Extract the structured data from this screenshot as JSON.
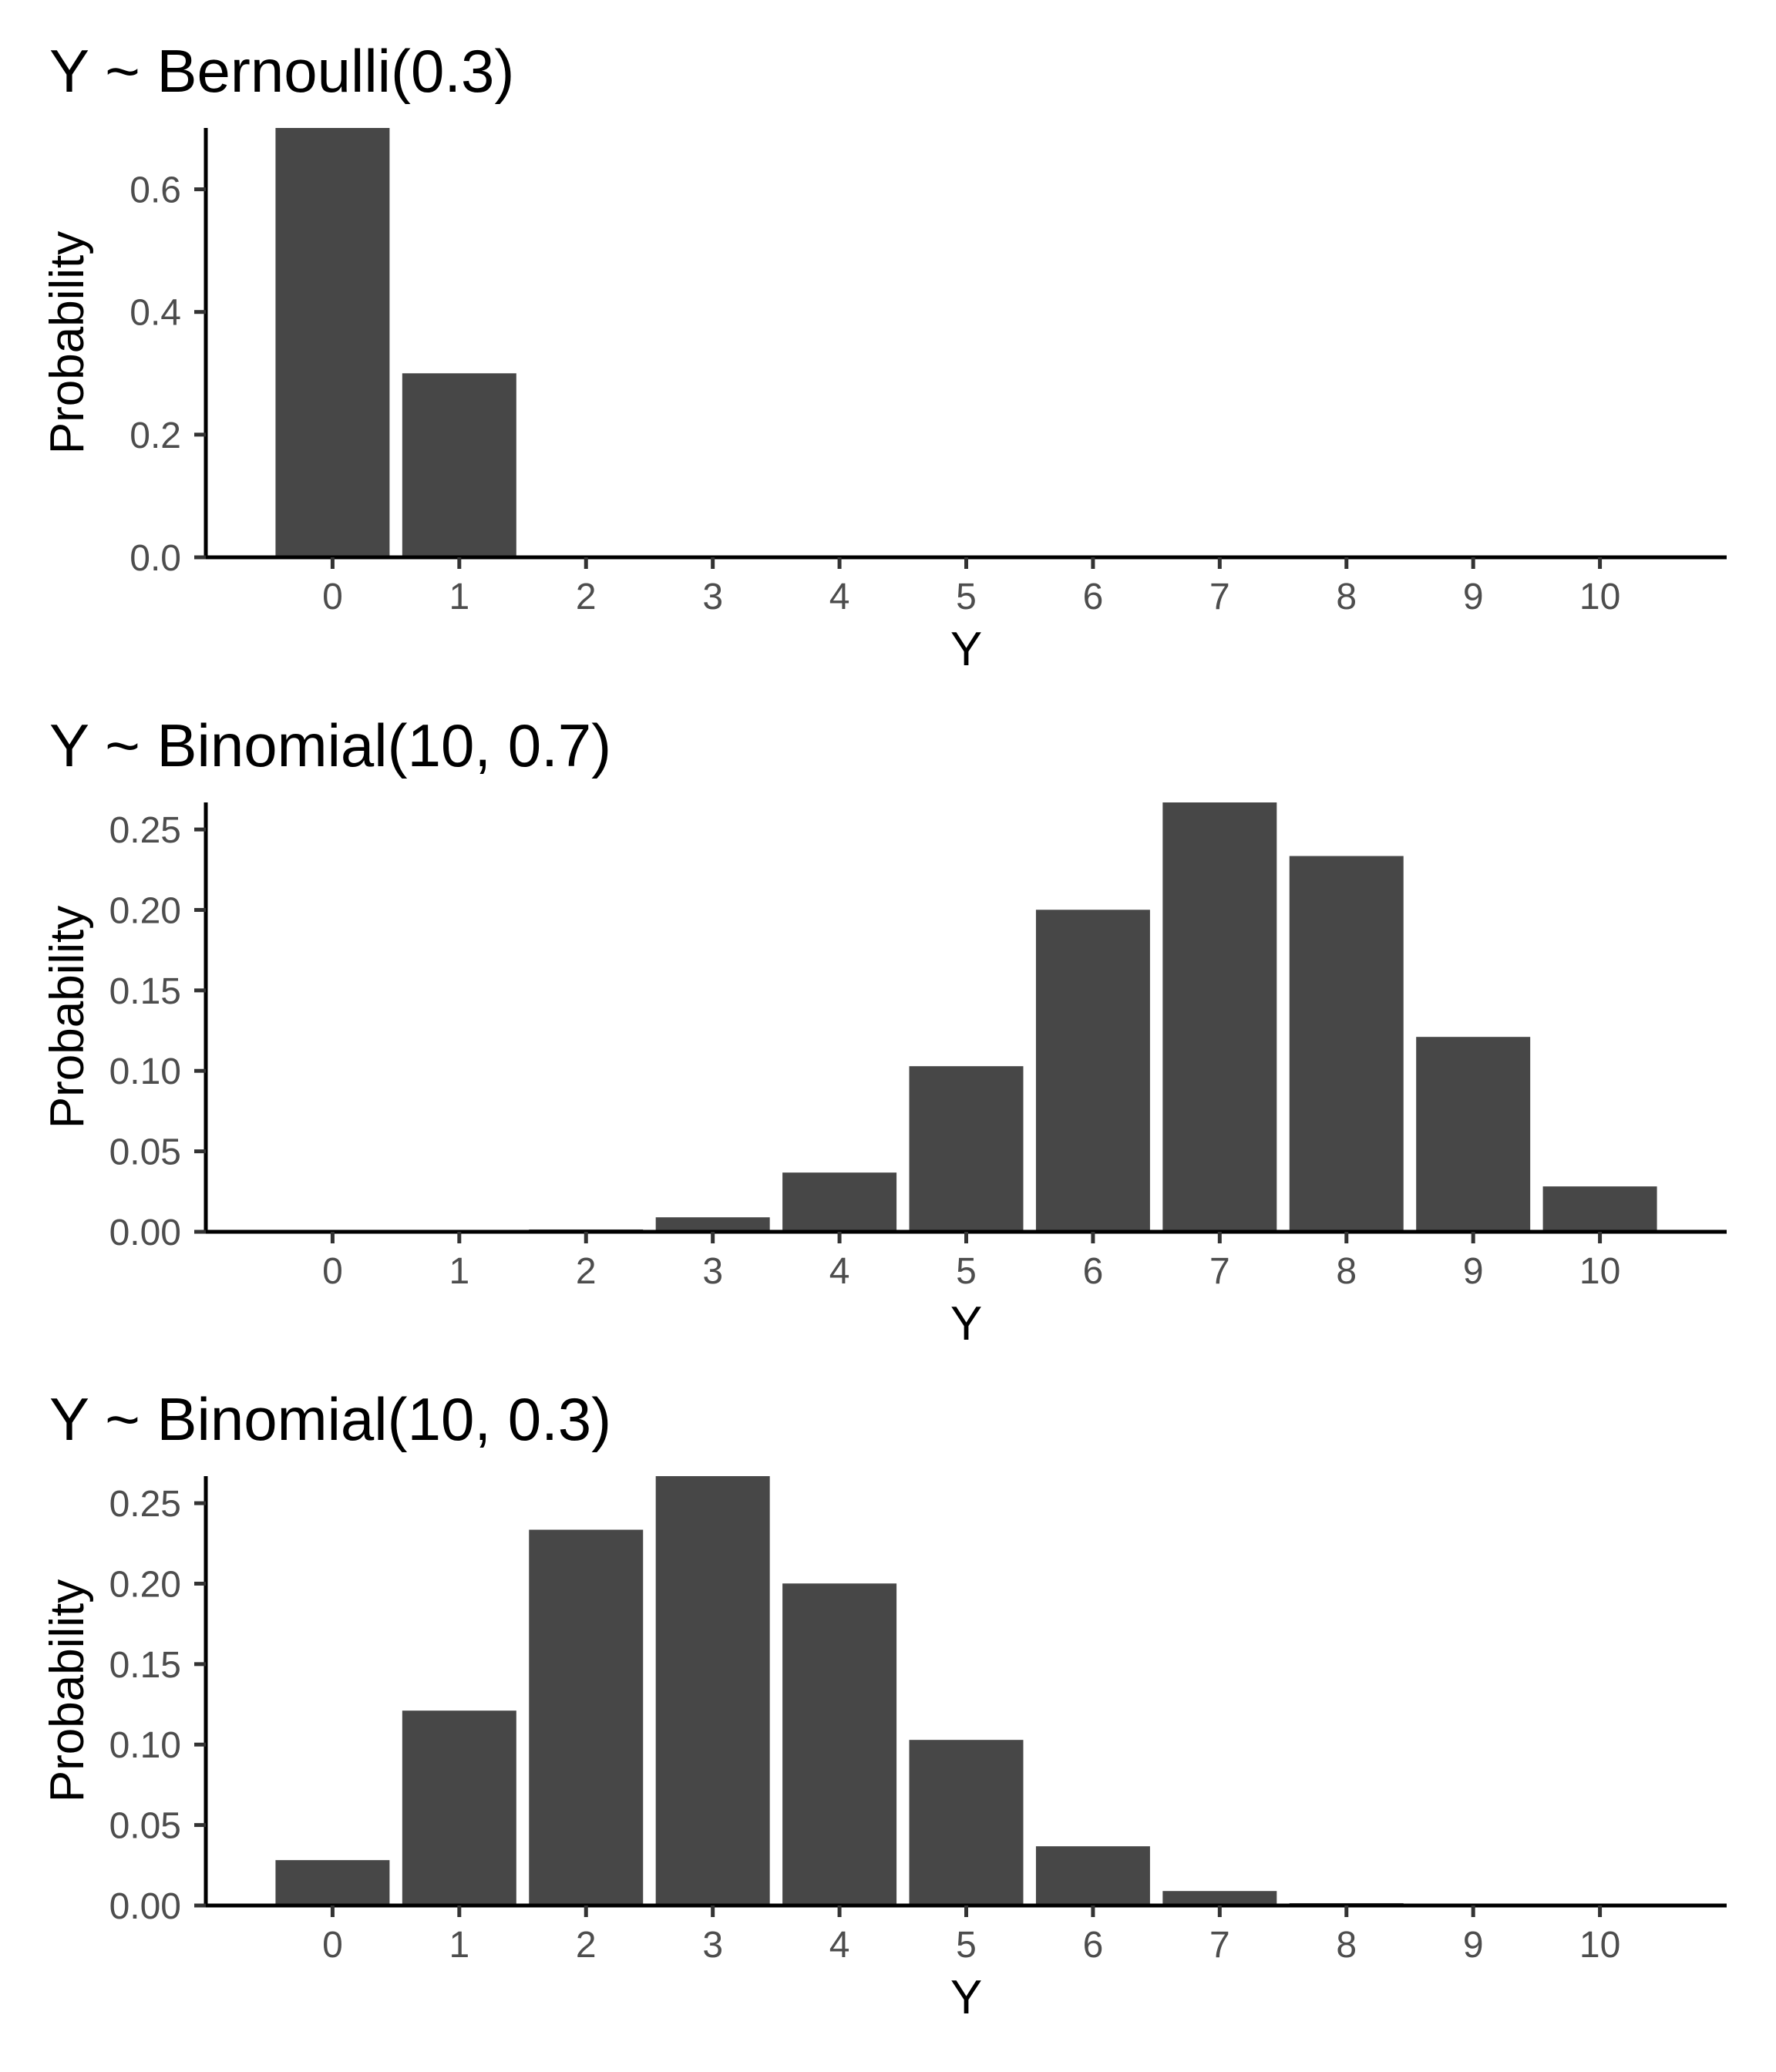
{
  "chart_data": [
    {
      "type": "bar",
      "title": "Y ~ Bernoulli(0.3)",
      "xlabel": "Y",
      "ylabel": "Probability",
      "categories": [
        0,
        1,
        2,
        3,
        4,
        5,
        6,
        7,
        8,
        9,
        10
      ],
      "values": [
        0.7,
        0.3,
        0,
        0,
        0,
        0,
        0,
        0,
        0,
        0,
        0
      ],
      "xlim": [
        -1,
        11
      ],
      "ylim": [
        0,
        0.7
      ],
      "xticks": [
        "0",
        "1",
        "2",
        "3",
        "4",
        "5",
        "6",
        "7",
        "8",
        "9",
        "10"
      ],
      "yticks": [
        0.0,
        0.2,
        0.4,
        0.6
      ],
      "ytick_labels": [
        "0.0",
        "0.2",
        "0.4",
        "0.6"
      ],
      "bar_color": "#474747",
      "grid": false,
      "legend": "none"
    },
    {
      "type": "bar",
      "title": "Y ~ Binomial(10, 0.7)",
      "xlabel": "Y",
      "ylabel": "Probability",
      "categories": [
        0,
        1,
        2,
        3,
        4,
        5,
        6,
        7,
        8,
        9,
        10
      ],
      "values": [
        5.9e-06,
        0.000138,
        0.00145,
        0.009,
        0.0368,
        0.1029,
        0.2001,
        0.2668,
        0.2335,
        0.1211,
        0.0282
      ],
      "xlim": [
        -1,
        11
      ],
      "ylim": [
        0,
        0.2668
      ],
      "xticks": [
        "0",
        "1",
        "2",
        "3",
        "4",
        "5",
        "6",
        "7",
        "8",
        "9",
        "10"
      ],
      "yticks": [
        0.0,
        0.05,
        0.1,
        0.15,
        0.2,
        0.25
      ],
      "ytick_labels": [
        "0.00",
        "0.05",
        "0.10",
        "0.15",
        "0.20",
        "0.25"
      ],
      "bar_color": "#474747",
      "grid": false,
      "legend": "none"
    },
    {
      "type": "bar",
      "title": "Y ~ Binomial(10, 0.3)",
      "xlabel": "Y",
      "ylabel": "Probability",
      "categories": [
        0,
        1,
        2,
        3,
        4,
        5,
        6,
        7,
        8,
        9,
        10
      ],
      "values": [
        0.0282,
        0.1211,
        0.2335,
        0.2668,
        0.2001,
        0.1029,
        0.0368,
        0.009,
        0.00145,
        0.000138,
        5.9e-06
      ],
      "xlim": [
        -1,
        11
      ],
      "ylim": [
        0,
        0.2668
      ],
      "xticks": [
        "0",
        "1",
        "2",
        "3",
        "4",
        "5",
        "6",
        "7",
        "8",
        "9",
        "10"
      ],
      "yticks": [
        0.0,
        0.05,
        0.1,
        0.15,
        0.2,
        0.25
      ],
      "ytick_labels": [
        "0.00",
        "0.05",
        "0.10",
        "0.15",
        "0.20",
        "0.25"
      ],
      "bar_color": "#474747",
      "grid": false,
      "legend": "none"
    }
  ]
}
